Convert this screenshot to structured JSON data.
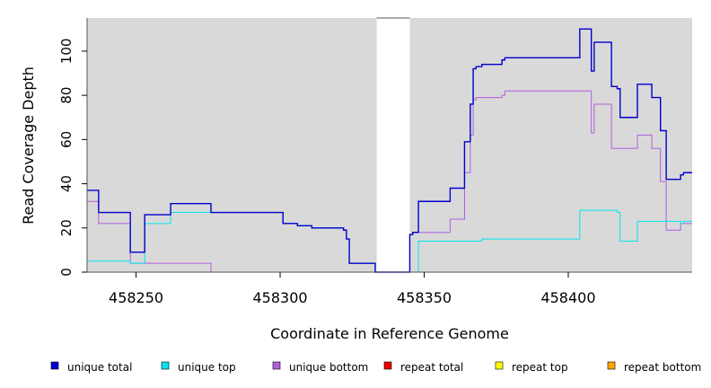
{
  "chart_data": {
    "type": "line",
    "title": "",
    "xlabel": "Coordinate in Reference Genome",
    "ylabel": "Read Coverage Depth",
    "xlim": [
      458233,
      458443
    ],
    "ylim": [
      0,
      115
    ],
    "x_ticks": [
      458250,
      458300,
      458350,
      458400
    ],
    "y_ticks": [
      0,
      20,
      40,
      60,
      80,
      100
    ],
    "plot_background": "#d9d9d9",
    "gaps": [
      {
        "from": 458333.5,
        "to": 458345
      }
    ],
    "legend_position": "bottom",
    "series": [
      {
        "name": "unique total",
        "color": "#0000cd",
        "steps": [
          [
            458233,
            37
          ],
          [
            458237,
            27
          ],
          [
            458248,
            9
          ],
          [
            458253,
            26
          ],
          [
            458262,
            31
          ],
          [
            458276,
            27
          ],
          [
            458301,
            22
          ],
          [
            458306,
            21
          ],
          [
            458311,
            20
          ],
          [
            458322,
            19
          ],
          [
            458323,
            15
          ],
          [
            458324,
            4
          ],
          [
            458333,
            0
          ],
          [
            458345,
            17
          ],
          [
            458346,
            18
          ],
          [
            458348,
            32
          ],
          [
            458359,
            38
          ],
          [
            458364,
            59
          ],
          [
            458366,
            76
          ],
          [
            458367,
            92
          ],
          [
            458368,
            93
          ],
          [
            458370,
            94
          ],
          [
            458377,
            96
          ],
          [
            458378,
            97
          ],
          [
            458404,
            110
          ],
          [
            458408,
            91
          ],
          [
            458409,
            104
          ],
          [
            458415,
            84
          ],
          [
            458417,
            83
          ],
          [
            458418,
            70
          ],
          [
            458424,
            85
          ],
          [
            458429,
            79
          ],
          [
            458432,
            64
          ],
          [
            458434,
            42
          ],
          [
            458439,
            44
          ],
          [
            458440,
            45
          ],
          [
            458443,
            45
          ]
        ]
      },
      {
        "name": "unique top",
        "color": "#00e5ee",
        "steps": [
          [
            458233,
            5
          ],
          [
            458248,
            4
          ],
          [
            458253,
            22
          ],
          [
            458262,
            27
          ],
          [
            458276,
            27
          ],
          [
            458301,
            22
          ],
          [
            458306,
            21
          ],
          [
            458311,
            20
          ],
          [
            458322,
            19
          ],
          [
            458323,
            15
          ],
          [
            458324,
            4
          ],
          [
            458333,
            0
          ],
          [
            458348,
            14
          ],
          [
            458370,
            15
          ],
          [
            458404,
            28
          ],
          [
            458417,
            27
          ],
          [
            458418,
            14
          ],
          [
            458424,
            23
          ],
          [
            458439,
            22
          ],
          [
            458440,
            23
          ],
          [
            458443,
            23
          ]
        ]
      },
      {
        "name": "unique bottom",
        "color": "#b05fdc",
        "steps": [
          [
            458233,
            32
          ],
          [
            458237,
            22
          ],
          [
            458248,
            4
          ],
          [
            458276,
            0
          ],
          [
            458345,
            17
          ],
          [
            458346,
            18
          ],
          [
            458359,
            24
          ],
          [
            458364,
            45
          ],
          [
            458366,
            62
          ],
          [
            458367,
            78
          ],
          [
            458368,
            79
          ],
          [
            458377,
            80
          ],
          [
            458378,
            82
          ],
          [
            458408,
            63
          ],
          [
            458409,
            76
          ],
          [
            458415,
            56
          ],
          [
            458424,
            62
          ],
          [
            458429,
            56
          ],
          [
            458432,
            41
          ],
          [
            458434,
            19
          ],
          [
            458439,
            22
          ],
          [
            458443,
            22
          ]
        ]
      },
      {
        "name": "repeat total",
        "color": "#ee0000",
        "steps": [
          [
            458233,
            0
          ],
          [
            458443,
            0
          ]
        ]
      },
      {
        "name": "repeat top",
        "color": "#ffff00",
        "steps": [
          [
            458233,
            0
          ],
          [
            458443,
            0
          ]
        ]
      },
      {
        "name": "repeat bottom",
        "color": "#ffa500",
        "steps": [
          [
            458233,
            0
          ],
          [
            458443,
            0
          ]
        ]
      }
    ]
  }
}
